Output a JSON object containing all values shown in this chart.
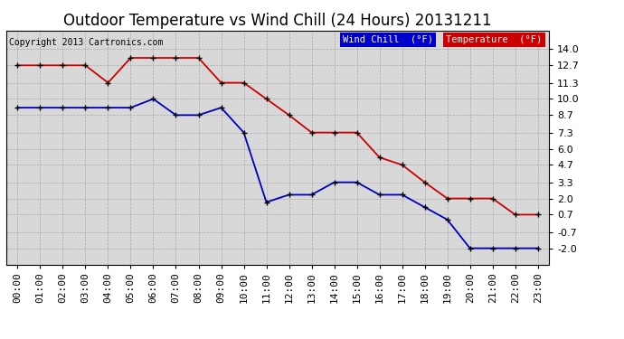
{
  "title": "Outdoor Temperature vs Wind Chill (24 Hours) 20131211",
  "copyright": "Copyright 2013 Cartronics.com",
  "hours": [
    "00:00",
    "01:00",
    "02:00",
    "03:00",
    "04:00",
    "05:00",
    "06:00",
    "07:00",
    "08:00",
    "09:00",
    "10:00",
    "11:00",
    "12:00",
    "13:00",
    "14:00",
    "15:00",
    "16:00",
    "17:00",
    "18:00",
    "19:00",
    "20:00",
    "21:00",
    "22:00",
    "23:00"
  ],
  "temperature": [
    12.7,
    12.7,
    12.7,
    12.7,
    11.3,
    13.3,
    13.3,
    13.3,
    13.3,
    11.3,
    11.3,
    10.0,
    8.7,
    7.3,
    7.3,
    7.3,
    5.3,
    4.7,
    3.3,
    2.0,
    2.0,
    2.0,
    0.7,
    0.7
  ],
  "wind_chill": [
    9.3,
    9.3,
    9.3,
    9.3,
    9.3,
    9.3,
    10.0,
    8.7,
    8.7,
    9.3,
    7.3,
    1.7,
    2.3,
    2.3,
    3.3,
    3.3,
    2.3,
    2.3,
    1.3,
    0.3,
    -2.0,
    -2.0,
    -2.0,
    -2.0
  ],
  "ylim_min": -3.3,
  "ylim_max": 15.5,
  "yticks": [
    14.0,
    12.7,
    11.3,
    10.0,
    8.7,
    7.3,
    6.0,
    4.7,
    3.3,
    2.0,
    0.7,
    -0.7,
    -2.0
  ],
  "ytick_labels": [
    "14.0",
    "12.7",
    "11.3",
    "10.0",
    "8.7",
    "7.3",
    "6.0",
    "4.7",
    "3.3",
    "2.0",
    "0.7",
    "-0.7",
    "-2.0"
  ],
  "temp_color": "#cc0000",
  "wind_color": "#0000bb",
  "bg_color": "#ffffff",
  "plot_bg": "#d8d8d8",
  "grid_color": "#aaaaaa",
  "legend_wind_bg": "#0000cc",
  "legend_temp_bg": "#cc0000",
  "title_fontsize": 12,
  "tick_fontsize": 8,
  "copyright_fontsize": 7
}
